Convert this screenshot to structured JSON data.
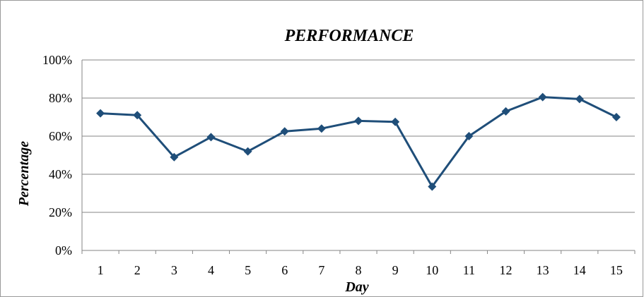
{
  "chart_data": {
    "type": "line",
    "title": "PERFORMANCE",
    "xlabel": "Day",
    "ylabel": "Percentage",
    "categories": [
      "1",
      "2",
      "3",
      "4",
      "5",
      "6",
      "7",
      "8",
      "9",
      "10",
      "11",
      "12",
      "13",
      "14",
      "15"
    ],
    "series": [
      {
        "values": [
          72,
          71,
          49,
          59.5,
          52,
          62.5,
          64,
          68,
          67.5,
          33.5,
          60,
          73,
          80.5,
          79.5,
          70
        ],
        "color": "#1F4E79"
      }
    ],
    "ylim": [
      0,
      100
    ],
    "yticks": [
      "0%",
      "20%",
      "40%",
      "60%",
      "80%",
      "100%"
    ],
    "grid": true,
    "legend": "none",
    "marker": "diamond"
  }
}
